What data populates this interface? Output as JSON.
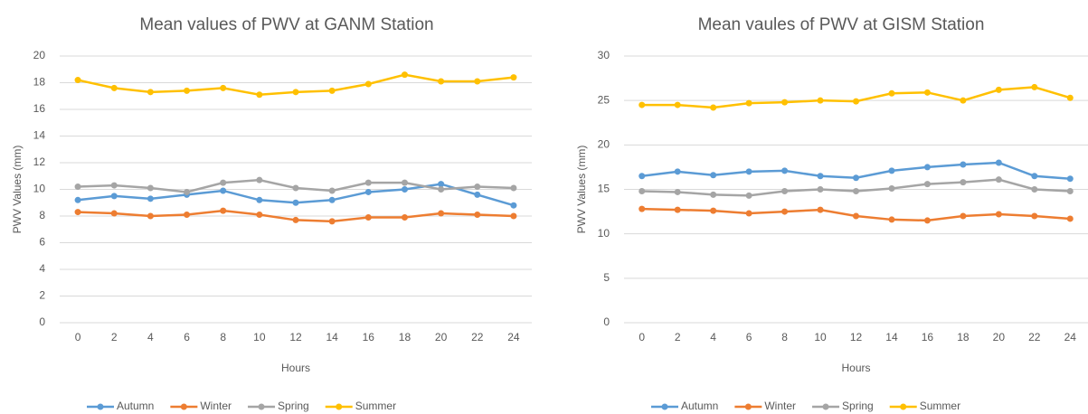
{
  "chart_data": [
    {
      "type": "line",
      "title": "Mean values of PWV at GANM Station",
      "x_label": "Hours",
      "y_label": "PWV Values (mm)",
      "categories": [
        0,
        2,
        4,
        6,
        8,
        10,
        12,
        14,
        16,
        18,
        20,
        22,
        24
      ],
      "ylim": [
        0,
        20
      ],
      "yticks": [
        0,
        2,
        4,
        6,
        8,
        10,
        12,
        14,
        16,
        18,
        20
      ],
      "grid": true,
      "legend": "bottom",
      "series": [
        {
          "name": "Autumn",
          "color": "#5b9bd5",
          "values": [
            9.2,
            9.5,
            9.3,
            9.6,
            9.9,
            9.2,
            9.0,
            9.2,
            9.8,
            10.0,
            10.4,
            9.6,
            8.8
          ]
        },
        {
          "name": "Winter",
          "color": "#ed7d31",
          "values": [
            8.3,
            8.2,
            8.0,
            8.1,
            8.4,
            8.1,
            7.7,
            7.6,
            7.9,
            7.9,
            8.2,
            8.1,
            8.0
          ]
        },
        {
          "name": "Spring",
          "color": "#a5a5a5",
          "values": [
            10.2,
            10.3,
            10.1,
            9.8,
            10.5,
            10.7,
            10.1,
            9.9,
            10.5,
            10.5,
            10.0,
            10.2,
            10.1
          ]
        },
        {
          "name": "Summer",
          "color": "#ffc000",
          "values": [
            18.2,
            17.6,
            17.3,
            17.4,
            17.6,
            17.1,
            17.3,
            17.4,
            17.9,
            18.6,
            18.1,
            18.1,
            18.4
          ]
        }
      ]
    },
    {
      "type": "line",
      "title": "Mean vaules of PWV at GISM Station",
      "x_label": "Hours",
      "y_label": "PWV Values (mm)",
      "categories": [
        0,
        2,
        4,
        6,
        8,
        10,
        12,
        14,
        16,
        18,
        20,
        22,
        24
      ],
      "ylim": [
        0,
        30
      ],
      "yticks": [
        0,
        5,
        10,
        15,
        20,
        25,
        30
      ],
      "grid": true,
      "legend": "bottom",
      "series": [
        {
          "name": "Autumn",
          "color": "#5b9bd5",
          "values": [
            16.5,
            17.0,
            16.6,
            17.0,
            17.1,
            16.5,
            16.3,
            17.1,
            17.5,
            17.8,
            18.0,
            16.5,
            16.2
          ]
        },
        {
          "name": "Winter",
          "color": "#ed7d31",
          "values": [
            12.8,
            12.7,
            12.6,
            12.3,
            12.5,
            12.7,
            12.0,
            11.6,
            11.5,
            12.0,
            12.2,
            12.0,
            11.7
          ]
        },
        {
          "name": "Spring",
          "color": "#a5a5a5",
          "values": [
            14.8,
            14.7,
            14.4,
            14.3,
            14.8,
            15.0,
            14.8,
            15.1,
            15.6,
            15.8,
            16.1,
            15.0,
            14.8
          ]
        },
        {
          "name": "Summer",
          "color": "#ffc000",
          "values": [
            24.5,
            24.5,
            24.2,
            24.7,
            24.8,
            25.0,
            24.9,
            25.8,
            25.9,
            25.0,
            26.2,
            26.5,
            25.3
          ]
        }
      ]
    }
  ]
}
